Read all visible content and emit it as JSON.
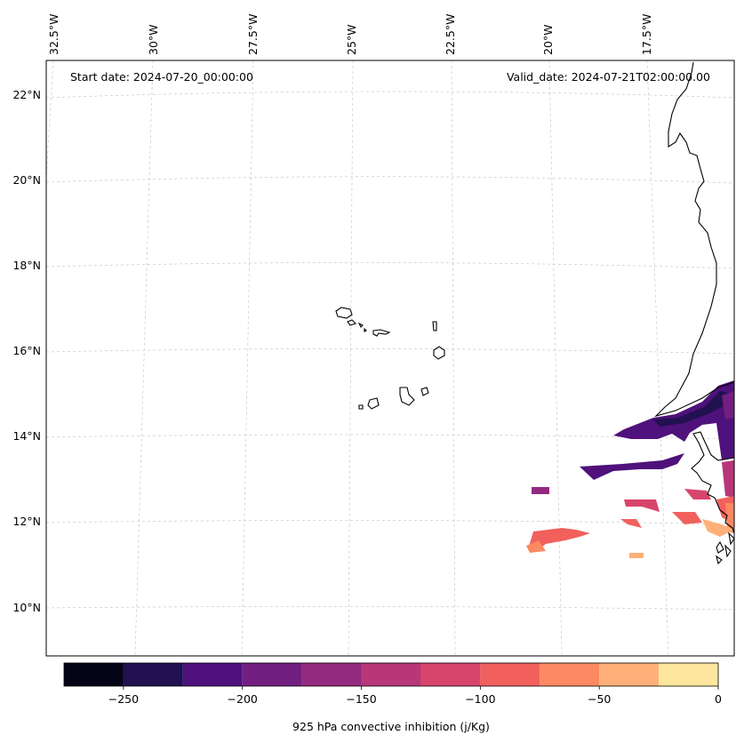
{
  "map": {
    "start_date_label": "Start date: 2024-07-20_00:00:00",
    "valid_date_label": "Valid_date: 2024-07-21T02:00:00.00",
    "lon_labels": [
      "32.5°W",
      "30°W",
      "27.5°W",
      "25°W",
      "22.5°W",
      "20°W",
      "17.5°W"
    ],
    "lat_labels": [
      "22°N",
      "20°N",
      "18°N",
      "16°N",
      "14°N",
      "12°N",
      "10°N"
    ],
    "gridlines": "on"
  },
  "colorbar": {
    "label": "925 hPa convective inhibition (j/Kg)",
    "ticks": [
      "−250",
      "−200",
      "−150",
      "−100",
      "−50",
      "0"
    ],
    "levels": [
      -275,
      -250,
      -225,
      -200,
      -175,
      -150,
      -125,
      -100,
      -75,
      -50,
      -25,
      0
    ],
    "colors": [
      "#050417",
      "#221150",
      "#4f117b",
      "#721f81",
      "#932a80",
      "#b73779",
      "#d8456c",
      "#f1605d",
      "#fc8961",
      "#feb078",
      "#fee69e"
    ]
  }
}
